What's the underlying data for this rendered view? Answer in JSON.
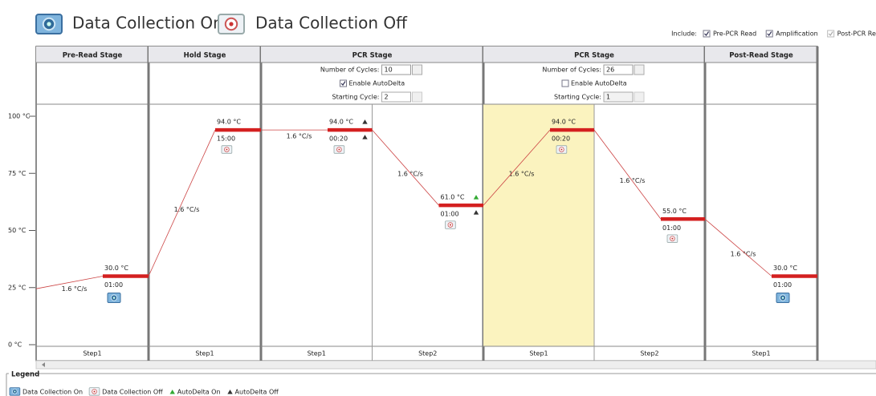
{
  "header": {
    "data_collection_on": "Data Collection On",
    "data_collection_off": "Data Collection Off"
  },
  "include": {
    "label": "Include:",
    "options": [
      {
        "name": "Pre-PCR Read",
        "checked": true,
        "enabled": true
      },
      {
        "name": "Amplification",
        "checked": true,
        "enabled": true
      },
      {
        "name": "Post-PCR Read",
        "checked": true,
        "enabled": false
      }
    ]
  },
  "y_axis": [
    "100 °C",
    "75 °C",
    "50 °C",
    "25 °C",
    "0 °C"
  ],
  "stages": [
    {
      "name": "Pre-Read Stage",
      "steps": [
        {
          "label": "Step1",
          "temp": "30.0 °C",
          "time": "01:00",
          "ramp": "1.6 °C/s",
          "collect": true
        }
      ]
    },
    {
      "name": "Hold Stage",
      "steps": [
        {
          "label": "Step1",
          "temp": "94.0 °C",
          "time": "15:00",
          "ramp": "1.6 °C/s",
          "collect": false
        }
      ]
    },
    {
      "name": "PCR Stage",
      "settings": {
        "cycles_label": "Number of Cycles:",
        "cycles": "10",
        "autodelta_label": "Enable AutoDelta",
        "autodelta": true,
        "start_label": "Starting Cycle:",
        "start": "2"
      },
      "steps": [
        {
          "label": "Step1",
          "temp": "94.0 °C",
          "time": "00:20",
          "ramp": "1.6 °C/s",
          "collect": false
        },
        {
          "label": "Step2",
          "temp": "61.0 °C",
          "time": "01:00",
          "ramp": "1.6 °C/s",
          "collect": false
        }
      ]
    },
    {
      "name": "PCR Stage",
      "selected_step": 0,
      "settings": {
        "cycles_label": "Number of Cycles:",
        "cycles": "26",
        "autodelta_label": "Enable AutoDelta",
        "autodelta": false,
        "start_label": "Starting Cycle:",
        "start": "1"
      },
      "steps": [
        {
          "label": "Step1",
          "temp": "94.0 °C",
          "time": "00:20",
          "ramp": "1.6 °C/s",
          "collect": false
        },
        {
          "label": "Step2",
          "temp": "55.0 °C",
          "time": "01:00",
          "ramp": "1.6 °C/s",
          "collect": false
        }
      ]
    },
    {
      "name": "Post-Read Stage",
      "steps": [
        {
          "label": "Step1",
          "temp": "30.0 °C",
          "time": "01:00",
          "ramp": "1.6 °C/s",
          "collect": true
        }
      ]
    }
  ],
  "legend": {
    "title": "Legend",
    "items": [
      "Data Collection On",
      "Data Collection Off",
      "AutoDelta On",
      "AutoDelta Off"
    ]
  }
}
